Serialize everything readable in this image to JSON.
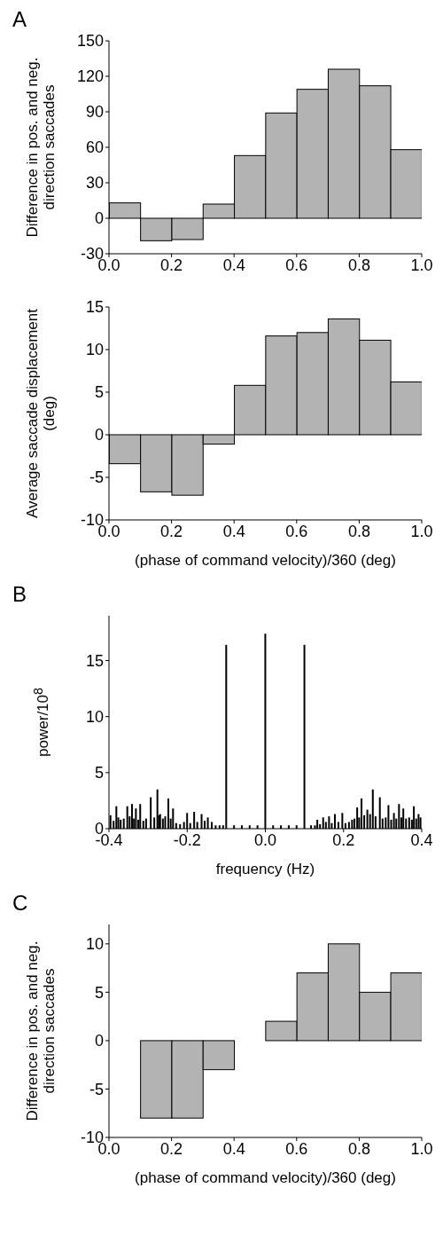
{
  "chart_data": [
    {
      "type": "histogram",
      "title": "A",
      "ylabel": "Difference in pos. and neg. direction saccades",
      "bins": [
        0,
        0.1,
        0.2,
        0.3,
        0.4,
        0.5,
        0.6,
        0.7,
        0.8,
        0.9,
        1.0
      ],
      "values": [
        13,
        -19,
        -18,
        12,
        53,
        89,
        109,
        126,
        112,
        58
      ],
      "color": "#b3b3b3",
      "xlim": [
        0,
        1
      ],
      "xticks": [
        {
          "value": 0,
          "label": "0.0"
        },
        {
          "value": 0.2,
          "label": "0.2"
        },
        {
          "value": 0.4,
          "label": "0.4"
        },
        {
          "value": 0.6,
          "label": "0.6"
        },
        {
          "value": 0.8,
          "label": "0.8"
        },
        {
          "value": 1,
          "label": "1.0"
        }
      ],
      "ylim": [
        -30,
        150
      ],
      "yticks": [
        -30,
        0,
        30,
        60,
        90,
        120,
        150
      ],
      "grid": false
    },
    {
      "type": "histogram",
      "xlabel": "(phase of command velocity)/360 (deg)",
      "ylabel": "Average saccade displacement (deg)",
      "bins": [
        0,
        0.1,
        0.2,
        0.3,
        0.4,
        0.5,
        0.6,
        0.7,
        0.8,
        0.9,
        1.0
      ],
      "values": [
        -3.4,
        -6.7,
        -7.1,
        -1.1,
        5.8,
        11.6,
        12,
        13.6,
        11.1,
        6.2
      ],
      "color": "#b3b3b3",
      "xlim": [
        0,
        1
      ],
      "xticks": [
        {
          "value": 0,
          "label": "0.0"
        },
        {
          "value": 0.2,
          "label": "0.2"
        },
        {
          "value": 0.4,
          "label": "0.4"
        },
        {
          "value": 0.6,
          "label": "0.6"
        },
        {
          "value": 0.8,
          "label": "0.8"
        },
        {
          "value": 1,
          "label": "1.0"
        }
      ],
      "ylim": [
        -10,
        15
      ],
      "yticks": [
        -10,
        -5,
        0,
        5,
        10,
        15
      ],
      "grid": false
    },
    {
      "type": "bar",
      "title": "B",
      "xlabel": "frequency (Hz)",
      "ylabel": "power/10$^{8}$",
      "color": "#000000",
      "x": [
        -0.396,
        -0.388,
        -0.381,
        -0.376,
        -0.37,
        -0.362,
        -0.353,
        -0.347,
        -0.341,
        -0.336,
        -0.331,
        -0.325,
        -0.32,
        -0.312,
        -0.305,
        -0.293,
        -0.284,
        -0.276,
        -0.272,
        -0.269,
        -0.262,
        -0.256,
        -0.248,
        -0.242,
        -0.236,
        -0.228,
        -0.218,
        -0.208,
        -0.2,
        -0.192,
        -0.182,
        -0.174,
        -0.163,
        -0.155,
        -0.147,
        -0.137,
        -0.127,
        -0.117,
        -0.108,
        -0.1,
        -0.08,
        -0.06,
        -0.04,
        -0.02,
        0,
        0.02,
        0.04,
        0.06,
        0.08,
        0.1,
        0.117,
        0.127,
        0.133,
        0.14,
        0.148,
        0.155,
        0.163,
        0.17,
        0.178,
        0.187,
        0.197,
        0.205,
        0.214,
        0.222,
        0.228,
        0.235,
        0.24,
        0.246,
        0.253,
        0.261,
        0.268,
        0.275,
        0.282,
        0.293,
        0.3,
        0.308,
        0.315,
        0.322,
        0.329,
        0.335,
        0.342,
        0.348,
        0.353,
        0.36,
        0.368,
        0.375,
        0.38,
        0.386,
        0.392,
        0.397
      ],
      "values": [
        1.2,
        0.7,
        2.0,
        1.0,
        0.8,
        0.9,
        2.0,
        1.1,
        2.2,
        0.9,
        1.8,
        0.8,
        2.2,
        0.7,
        0.9,
        2.8,
        1.0,
        3.5,
        1.2,
        1.3,
        0.9,
        1.1,
        2.7,
        0.9,
        1.8,
        0.5,
        0.4,
        0.6,
        1.4,
        0.5,
        1.5,
        0.6,
        1.3,
        0.7,
        1.0,
        0.6,
        0.3,
        0.3,
        0.3,
        16.4,
        0.3,
        0.3,
        0.3,
        0.3,
        17.4,
        0.3,
        0.3,
        0.3,
        0.3,
        16.4,
        0.3,
        0.3,
        0.8,
        0.4,
        1.0,
        0.6,
        1.1,
        0.5,
        1.3,
        0.6,
        1.4,
        0.5,
        0.6,
        0.8,
        0.9,
        1.9,
        1.0,
        2.7,
        1.2,
        1.7,
        1.3,
        3.5,
        1.1,
        2.8,
        0.9,
        1.0,
        2.1,
        0.8,
        1.4,
        0.9,
        2.2,
        1.0,
        1.8,
        0.9,
        1.0,
        0.8,
        2.0,
        0.9,
        1.3,
        1.0
      ],
      "xlim": [
        -0.4,
        0.4
      ],
      "xticks": [
        {
          "value": -0.4,
          "label": "-0.4"
        },
        {
          "value": -0.2,
          "label": "-0.2"
        },
        {
          "value": 0,
          "label": "0.0"
        },
        {
          "value": 0.2,
          "label": "0.2"
        },
        {
          "value": 0.4,
          "label": "0.4"
        }
      ],
      "ylim": [
        0,
        19
      ],
      "yticks": [
        0,
        5,
        10,
        15
      ],
      "grid": false
    },
    {
      "type": "histogram",
      "title": "C",
      "xlabel": "(phase of command velocity)/360 (deg)",
      "ylabel": "Difference in pos. and neg. direction saccades",
      "bins": [
        0,
        0.1,
        0.2,
        0.3,
        0.4,
        0.5,
        0.6,
        0.7,
        0.8,
        0.9,
        1.0
      ],
      "values": [
        0,
        -8,
        -8,
        -3,
        0,
        2,
        7,
        10,
        5,
        7
      ],
      "color": "#b3b3b3",
      "xlim": [
        0,
        1
      ],
      "xticks": [
        {
          "value": 0,
          "label": "0.0"
        },
        {
          "value": 0.2,
          "label": "0.2"
        },
        {
          "value": 0.4,
          "label": "0.4"
        },
        {
          "value": 0.6,
          "label": "0.6"
        },
        {
          "value": 0.8,
          "label": "0.8"
        },
        {
          "value": 1,
          "label": "1.0"
        }
      ],
      "ylim": [
        -10,
        12
      ],
      "yticks": [
        -10,
        -5,
        0,
        5,
        10
      ],
      "grid": false
    }
  ]
}
